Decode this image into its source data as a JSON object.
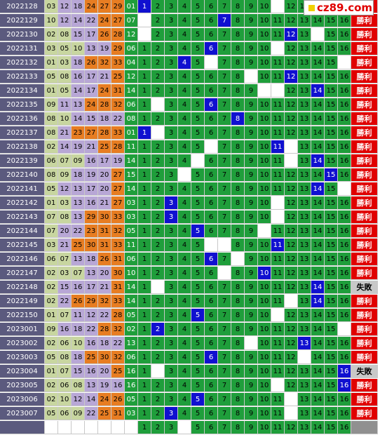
{
  "site_logo": "cz89.com",
  "logo_square_color": "#f0d000",
  "colors": {
    "issue_bg": "#5b5a7e",
    "red_ball_col1_bg": "#c8d6a0",
    "red_ball_purple_bg": "#b8a7d6",
    "red_ball_orange_bg": "#e77d22",
    "blue_ball_bg": "#1f9e3b",
    "hit_bg": "#1010d0",
    "grid_bg": "#1f9e3b",
    "win_bg": "#e00000",
    "lose_bg": "#c8c8c8"
  },
  "blue_numbers": [
    "1",
    "2",
    "3",
    "4",
    "5",
    "6",
    "7",
    "8",
    "9",
    "10",
    "11",
    "12",
    "13",
    "14",
    "15",
    "16"
  ],
  "rows": [
    {
      "issue": "2022128",
      "reds": [
        "03",
        "12",
        "18",
        "24",
        "27",
        "29"
      ],
      "blue": "01",
      "excluded": [
        11
      ],
      "result": "勝利"
    },
    {
      "issue": "2022129",
      "reds": [
        "10",
        "12",
        "14",
        "22",
        "24",
        "27"
      ],
      "blue": "07",
      "excluded": [
        1
      ],
      "result": "勝利"
    },
    {
      "issue": "2022130",
      "reds": [
        "02",
        "08",
        "15",
        "17",
        "26",
        "28"
      ],
      "blue": "12",
      "excluded": [
        1,
        14
      ],
      "result": "勝利"
    },
    {
      "issue": "2022131",
      "reds": [
        "03",
        "05",
        "10",
        "13",
        "19",
        "29"
      ],
      "blue": "06",
      "excluded": [
        11
      ],
      "result": "勝利"
    },
    {
      "issue": "2022132",
      "reds": [
        "01",
        "03",
        "18",
        "26",
        "32",
        "33"
      ],
      "blue": "04",
      "excluded": [
        6,
        16
      ],
      "result": "勝利"
    },
    {
      "issue": "2022133",
      "reds": [
        "05",
        "08",
        "16",
        "17",
        "21",
        "25"
      ],
      "blue": "12",
      "excluded": [
        9
      ],
      "result": "勝利"
    },
    {
      "issue": "2022134",
      "reds": [
        "01",
        "05",
        "14",
        "17",
        "24",
        "31"
      ],
      "blue": "14",
      "excluded": [
        10,
        11
      ],
      "result": "勝利"
    },
    {
      "issue": "2022135",
      "reds": [
        "09",
        "11",
        "13",
        "24",
        "28",
        "32"
      ],
      "blue": "06",
      "excluded": [
        2
      ],
      "result": "勝利"
    },
    {
      "issue": "2022136",
      "reds": [
        "08",
        "10",
        "14",
        "15",
        "18",
        "22"
      ],
      "blue": "08",
      "excluded": [],
      "result": "勝利"
    },
    {
      "issue": "2022137",
      "reds": [
        "08",
        "21",
        "23",
        "27",
        "28",
        "33"
      ],
      "blue": "01",
      "excluded": [
        2
      ],
      "result": "勝利"
    },
    {
      "issue": "2022138",
      "reds": [
        "02",
        "14",
        "19",
        "21",
        "25",
        "28"
      ],
      "blue": "11",
      "excluded": [
        6,
        12
      ],
      "result": "勝利"
    },
    {
      "issue": "2022139",
      "reds": [
        "06",
        "07",
        "09",
        "16",
        "17",
        "19"
      ],
      "blue": "14",
      "excluded": [
        5,
        12
      ],
      "result": "勝利"
    },
    {
      "issue": "2022140",
      "reds": [
        "08",
        "09",
        "18",
        "19",
        "20",
        "27"
      ],
      "blue": "15",
      "excluded": [
        4
      ],
      "result": "勝利"
    },
    {
      "issue": "2022141",
      "reds": [
        "05",
        "12",
        "13",
        "17",
        "20",
        "27"
      ],
      "blue": "14",
      "excluded": [
        16
      ],
      "result": "勝利"
    },
    {
      "issue": "2022142",
      "reds": [
        "01",
        "03",
        "13",
        "16",
        "21",
        "27"
      ],
      "blue": "03",
      "excluded": [
        11
      ],
      "result": "勝利"
    },
    {
      "issue": "2022143",
      "reds": [
        "07",
        "08",
        "13",
        "29",
        "30",
        "33"
      ],
      "blue": "03",
      "excluded": [
        11
      ],
      "result": "勝利"
    },
    {
      "issue": "2022144",
      "reds": [
        "07",
        "20",
        "22",
        "23",
        "31",
        "32"
      ],
      "blue": "05",
      "excluded": [
        10
      ],
      "result": "勝利"
    },
    {
      "issue": "2022145",
      "reds": [
        "03",
        "21",
        "25",
        "30",
        "31",
        "33"
      ],
      "blue": "11",
      "excluded": [
        6,
        7
      ],
      "result": "勝利"
    },
    {
      "issue": "2022146",
      "reds": [
        "06",
        "07",
        "13",
        "18",
        "26",
        "31"
      ],
      "blue": "06",
      "excluded": [
        8
      ],
      "result": "勝利"
    },
    {
      "issue": "2022147",
      "reds": [
        "02",
        "03",
        "07",
        "13",
        "20",
        "30"
      ],
      "blue": "10",
      "excluded": [
        7
      ],
      "result": "勝利"
    },
    {
      "issue": "2022148",
      "reds": [
        "02",
        "15",
        "16",
        "17",
        "21",
        "31"
      ],
      "blue": "14",
      "excluded": [
        2
      ],
      "result": "失敗"
    },
    {
      "issue": "2022149",
      "reds": [
        "02",
        "22",
        "26",
        "29",
        "32",
        "33"
      ],
      "blue": "14",
      "excluded": [
        12
      ],
      "result": "勝利"
    },
    {
      "issue": "2022150",
      "reds": [
        "01",
        "07",
        "11",
        "12",
        "22",
        "28"
      ],
      "blue": "05",
      "excluded": [
        11
      ],
      "result": "勝利"
    },
    {
      "issue": "2023001",
      "reds": [
        "09",
        "16",
        "18",
        "22",
        "28",
        "32"
      ],
      "blue": "02",
      "excluded": [
        16
      ],
      "result": "勝利"
    },
    {
      "issue": "2023002",
      "reds": [
        "02",
        "06",
        "10",
        "16",
        "18",
        "22"
      ],
      "blue": "13",
      "excluded": [
        9
      ],
      "result": "勝利"
    },
    {
      "issue": "2023003",
      "reds": [
        "05",
        "08",
        "18",
        "25",
        "30",
        "32"
      ],
      "blue": "06",
      "excluded": [
        13
      ],
      "result": "勝利"
    },
    {
      "issue": "2023004",
      "reds": [
        "01",
        "07",
        "15",
        "16",
        "20",
        "25"
      ],
      "blue": "16",
      "excluded": [
        2
      ],
      "result": "失敗"
    },
    {
      "issue": "2023005",
      "reds": [
        "02",
        "06",
        "08",
        "13",
        "19",
        "16"
      ],
      "blue": "16",
      "excluded": [
        11
      ],
      "result": "勝利"
    },
    {
      "issue": "2023006",
      "reds": [
        "02",
        "10",
        "12",
        "14",
        "24",
        "26"
      ],
      "blue": "05",
      "excluded": [
        12
      ],
      "result": "勝利"
    },
    {
      "issue": "2023007",
      "reds": [
        "05",
        "06",
        "09",
        "22",
        "25",
        "31"
      ],
      "blue": "03",
      "excluded": [
        12
      ],
      "result": "勝利"
    },
    {
      "issue": "",
      "reds": [
        "",
        "",
        "",
        "",
        "",
        ""
      ],
      "blue": "",
      "excluded": [
        4
      ],
      "result": ""
    }
  ]
}
